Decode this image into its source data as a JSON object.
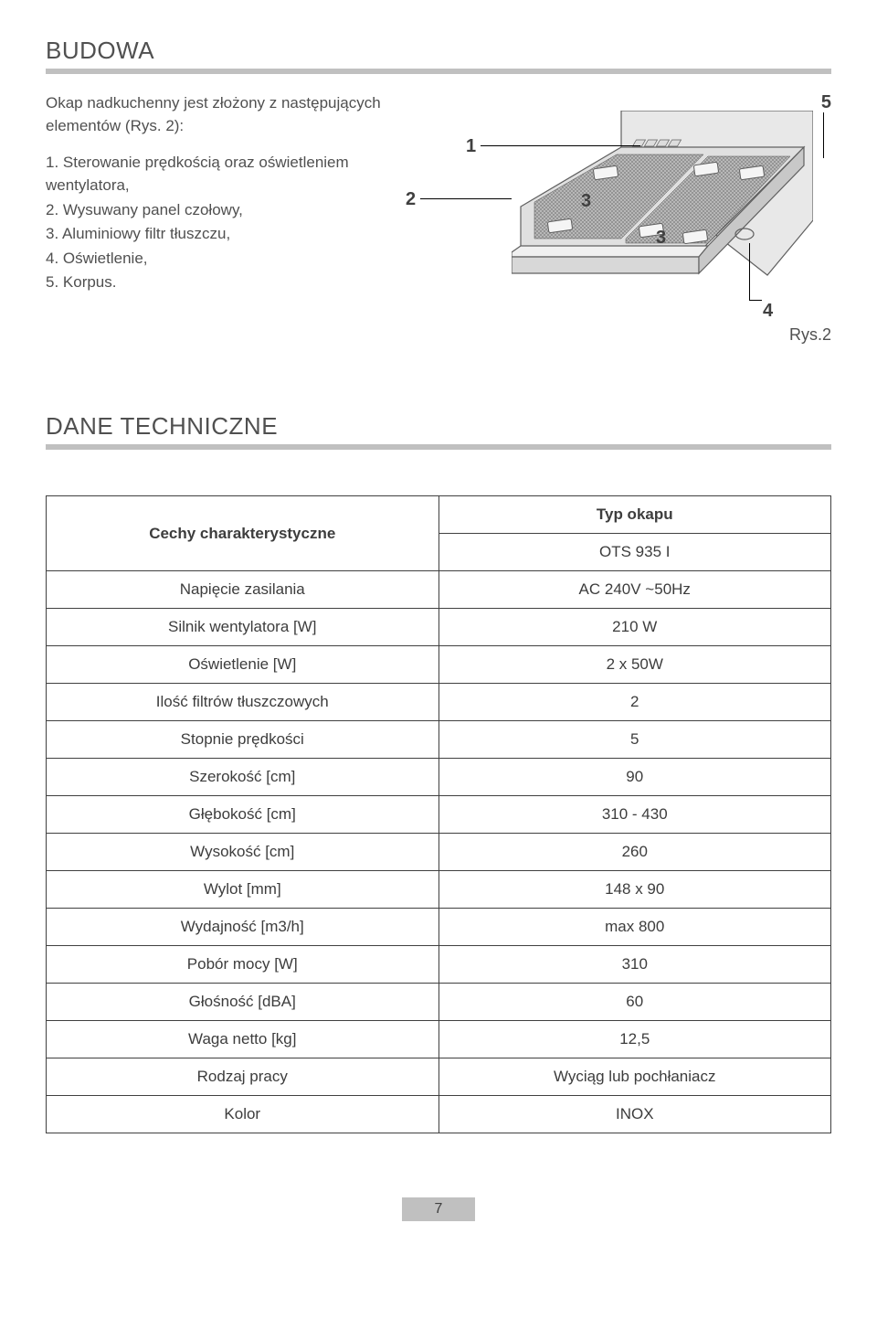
{
  "section1": {
    "title": "BUDOWA",
    "intro": "Okap nadkuchenny jest złożony z następujących elementów (Rys. 2):",
    "items": [
      "1. Sterowanie prędkością oraz oświetleniem wentylatora,",
      "2. Wysuwany panel czołowy,",
      "3. Aluminiowy filtr tłuszczu,",
      "4. Oświetlenie,",
      "5. Korpus."
    ]
  },
  "diagram": {
    "callouts": {
      "c1": "1",
      "c2": "2",
      "c3a": "3",
      "c3b": "3",
      "c4": "4",
      "c5": "5"
    },
    "fig_label": "Rys.2"
  },
  "section2": {
    "title": "DANE TECHNICZNE"
  },
  "table": {
    "header_label": "Cechy charakterystyczne",
    "header_value_top": "Typ okapu",
    "header_value_bottom": "OTS 935 I",
    "rows": [
      {
        "label": "Napięcie zasilania",
        "value": "AC 240V ~50Hz"
      },
      {
        "label": "Silnik wentylatora [W]",
        "value": "210 W"
      },
      {
        "label": "Oświetlenie [W]",
        "value": "2 x 50W"
      },
      {
        "label": "Ilość filtrów tłuszczowych",
        "value": "2"
      },
      {
        "label": "Stopnie prędkości",
        "value": "5"
      },
      {
        "label": "Szerokość [cm]",
        "value": "90"
      },
      {
        "label": "Głębokość [cm]",
        "value": "310 - 430"
      },
      {
        "label": "Wysokość [cm]",
        "value": "260"
      },
      {
        "label": "Wylot [mm]",
        "value": "148 x 90"
      },
      {
        "label": "Wydajność [m3/h]",
        "value": "max 800"
      },
      {
        "label": "Pobór mocy [W]",
        "value": "310"
      },
      {
        "label": "Głośność [dBA]",
        "value": "60"
      },
      {
        "label": "Waga netto [kg]",
        "value": "12,5"
      },
      {
        "label": "Rodzaj pracy",
        "value": "Wyciąg lub pochłaniacz"
      },
      {
        "label": "Kolor",
        "value": "INOX"
      }
    ]
  },
  "page_number": "7"
}
